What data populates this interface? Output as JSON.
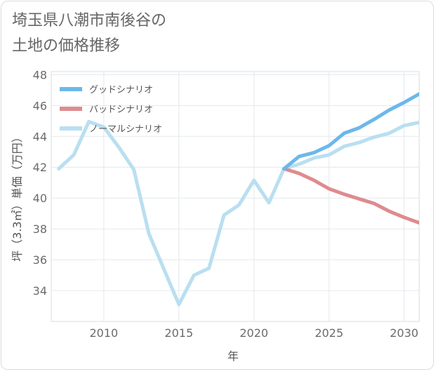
{
  "page": {
    "title_line1": "埼玉県八潮市南後谷の",
    "title_line2": "土地の価格推移"
  },
  "chart_data": {
    "type": "line",
    "title": "埼玉県八潮市南後谷の土地の価格推移",
    "xlabel": "年",
    "ylabel": "坪（3.3㎡）単価（万円）",
    "xlim": [
      2006.5,
      2031
    ],
    "ylim": [
      32,
      48.2
    ],
    "xticks": [
      2010,
      2015,
      2020,
      2025,
      2030
    ],
    "yticks": [
      34,
      36,
      38,
      40,
      42,
      44,
      46,
      48
    ],
    "grid": true,
    "legend_position": "top-left",
    "series": [
      {
        "name": "グッドシナリオ",
        "color": "#6cb8ea",
        "x": [
          2022,
          2023,
          2024,
          2025,
          2026,
          2027,
          2028,
          2029,
          2030,
          2031
        ],
        "values": [
          41.9,
          42.7,
          42.95,
          43.4,
          44.2,
          44.55,
          45.1,
          45.7,
          46.2,
          46.75
        ]
      },
      {
        "name": "バッドシナリオ",
        "color": "#de8b8f",
        "x": [
          2022,
          2023,
          2024,
          2025,
          2026,
          2027,
          2028,
          2029,
          2030,
          2031
        ],
        "values": [
          41.9,
          41.6,
          41.15,
          40.6,
          40.25,
          39.95,
          39.65,
          39.15,
          38.75,
          38.4
        ]
      },
      {
        "name": "ノーマルシナリオ",
        "color": "#b9dff0",
        "x": [
          2007,
          2008,
          2009,
          2010,
          2011,
          2012,
          2013,
          2014,
          2015,
          2016,
          2017,
          2018,
          2019,
          2020,
          2021,
          2022,
          2023,
          2024,
          2025,
          2026,
          2027,
          2028,
          2029,
          2030,
          2031
        ],
        "values": [
          41.9,
          42.8,
          44.95,
          44.6,
          43.3,
          41.85,
          37.7,
          35.4,
          33.1,
          35.0,
          35.45,
          38.9,
          39.55,
          41.15,
          39.7,
          41.9,
          42.2,
          42.6,
          42.8,
          43.35,
          43.6,
          43.95,
          44.2,
          44.7,
          44.9
        ]
      }
    ]
  }
}
